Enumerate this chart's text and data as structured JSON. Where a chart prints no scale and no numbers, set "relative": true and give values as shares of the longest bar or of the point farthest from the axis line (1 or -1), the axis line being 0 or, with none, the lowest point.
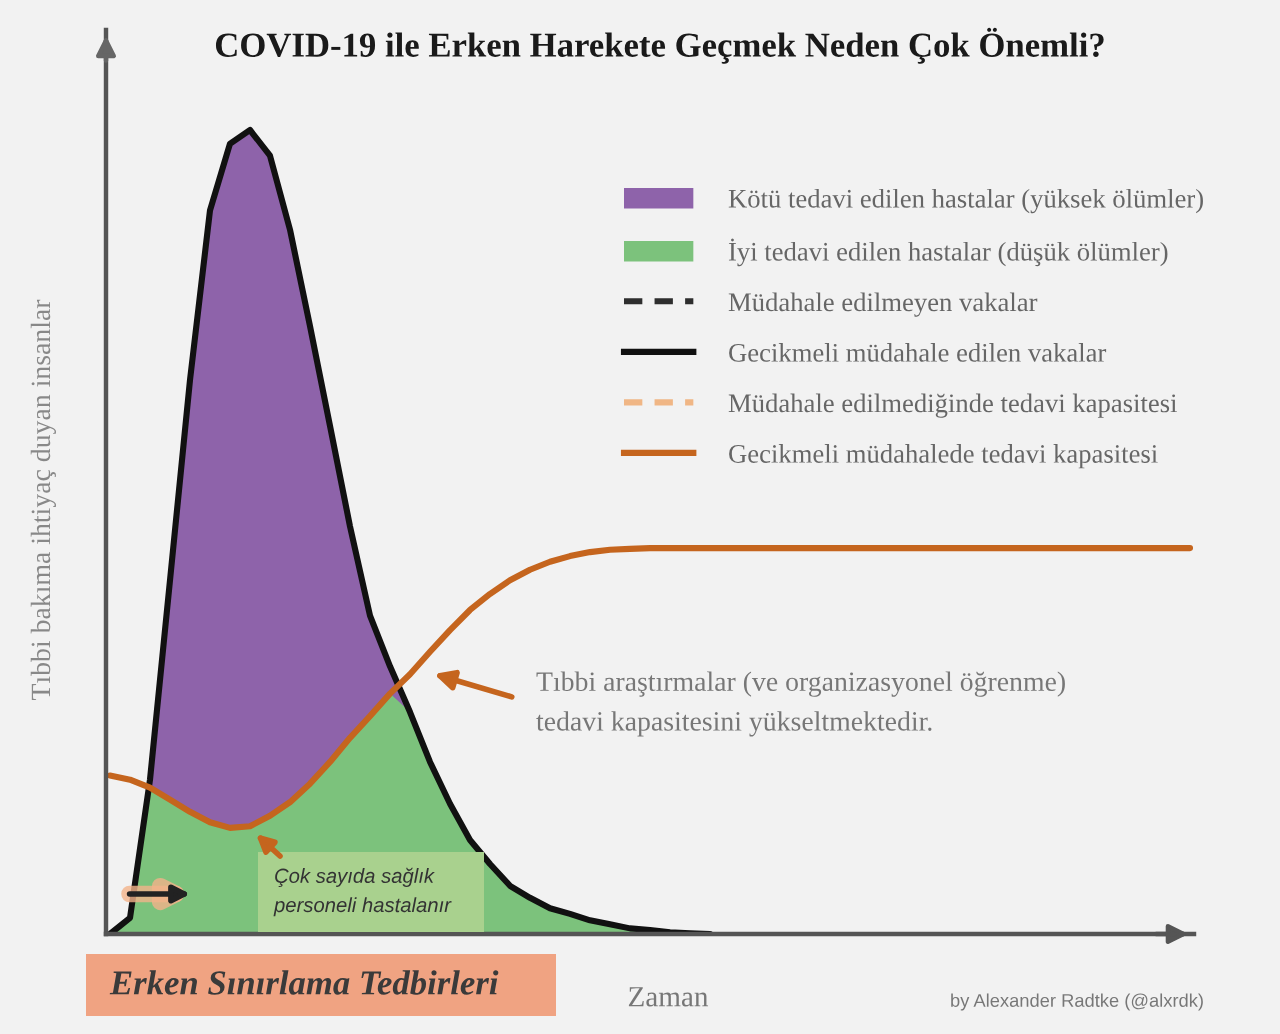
{
  "chart_data": {
    "type": "line",
    "title": "COVID-19 ile Erken Harekete Geçmek Neden Çok Önemli?",
    "xlabel": "Zaman",
    "ylabel": "Tıbbi bakıma ihtiyaç duyan insanlar",
    "relative": true,
    "legend": "top right",
    "categories": [
      null,
      null,
      null,
      null,
      null,
      null,
      null,
      null,
      null,
      null,
      null,
      null,
      null,
      null,
      null,
      null,
      null,
      null,
      null,
      null,
      null,
      null,
      null,
      null,
      null,
      null,
      null,
      null,
      null,
      null,
      null,
      null,
      null,
      null,
      null,
      null,
      null,
      null,
      null,
      null,
      null,
      null,
      null,
      null,
      null,
      null,
      null,
      null,
      null,
      null,
      null,
      null,
      null,
      null,
      null
    ],
    "series": [
      {
        "name": "Kötü tedavi edilen hastalar (yüksek ölümler)",
        "type": "area",
        "color": "#8e63aa",
        "values": [
          null,
          null,
          0.192,
          0.44,
          0.689,
          0.9,
          0.983,
          1.0,
          0.968,
          0.876,
          0.756,
          0.632,
          0.507,
          0.396,
          0.333,
          0.276,
          null,
          null,
          null,
          null,
          null,
          null,
          null,
          null,
          null,
          null,
          null,
          null,
          null,
          null,
          null,
          null,
          null,
          null,
          null,
          null,
          null,
          null,
          null,
          null,
          null,
          null,
          null,
          null,
          null,
          null,
          null,
          null,
          null,
          null,
          null,
          null,
          null,
          null,
          null
        ]
      },
      {
        "name": "İyi tedavi edilen hastalar (düşük ölümler)",
        "type": "area",
        "color": "#7cc27c",
        "values": [
          0,
          0.02,
          0.182,
          0.167,
          0.152,
          0.139,
          0.132,
          0.134,
          0.147,
          0.164,
          0.187,
          0.214,
          0.244,
          0.271,
          0.299,
          0.276,
          0.214,
          0.162,
          0.117,
          0.087,
          0.06,
          0.045,
          0.032,
          0.025,
          0.017,
          0.012,
          0.007,
          0.005,
          0.002,
          0.001,
          0,
          null,
          null,
          null,
          null,
          null,
          null,
          null,
          null,
          null,
          null,
          null,
          null,
          null,
          null,
          null,
          null,
          null,
          null,
          null,
          null,
          null,
          null,
          null,
          null
        ]
      },
      {
        "name": "Müdahale edilmeyen vakalar",
        "color": "#2e2e2e",
        "line_style": "dashed",
        "values": [
          null,
          null,
          null,
          null,
          null,
          null,
          null,
          null,
          null,
          null,
          null,
          null,
          null,
          null,
          null,
          null,
          null,
          null,
          null,
          null,
          null,
          null,
          null,
          null,
          null,
          null,
          null,
          null,
          null,
          null,
          null,
          null,
          null,
          null,
          null,
          null,
          null,
          null,
          null,
          null,
          null,
          null,
          null,
          null,
          null,
          null,
          null,
          null,
          null,
          null,
          null,
          null,
          null,
          null,
          null
        ]
      },
      {
        "name": "Gecikmeli müdahale edilen vakalar",
        "color": "#111111",
        "values": [
          0,
          0.02,
          0.192,
          0.44,
          0.689,
          0.9,
          0.983,
          1.0,
          0.968,
          0.876,
          0.756,
          0.632,
          0.507,
          0.396,
          0.333,
          0.276,
          0.214,
          0.162,
          0.117,
          0.087,
          0.06,
          0.045,
          0.032,
          0.025,
          0.017,
          0.012,
          0.007,
          0.005,
          0.002,
          0.001,
          0,
          null,
          null,
          null,
          null,
          null,
          null,
          null,
          null,
          null,
          null,
          null,
          null,
          null,
          null,
          null,
          null,
          null,
          null,
          null,
          null,
          null,
          null,
          null,
          null
        ]
      },
      {
        "name": "Müdahale edilmediğinde tedavi kapasitesi",
        "color": "#f0b685",
        "line_style": "dashed",
        "values": [
          null,
          null,
          null,
          null,
          null,
          null,
          null,
          null,
          null,
          null,
          null,
          null,
          null,
          null,
          null,
          null,
          null,
          null,
          null,
          null,
          null,
          null,
          null,
          null,
          null,
          null,
          null,
          null,
          null,
          null,
          null,
          null,
          null,
          null,
          null,
          null,
          null,
          null,
          null,
          null,
          null,
          null,
          null,
          null,
          null,
          null,
          null,
          null,
          null,
          null,
          null,
          null,
          null,
          null,
          null
        ]
      },
      {
        "name": "Gecikmeli müdahalede tedavi kapasitesi",
        "color": "#c5651e",
        "values": [
          0.197,
          0.192,
          0.182,
          0.167,
          0.152,
          0.139,
          0.132,
          0.134,
          0.147,
          0.164,
          0.187,
          0.214,
          0.244,
          0.271,
          0.299,
          0.323,
          0.351,
          0.378,
          0.403,
          0.423,
          0.44,
          0.453,
          0.463,
          0.47,
          0.475,
          0.478,
          0.479,
          0.48,
          0.48,
          0.48,
          0.48,
          0.48,
          0.48,
          0.48,
          0.48,
          0.48,
          0.48,
          0.48,
          0.48,
          0.48,
          0.48,
          0.48,
          0.48,
          0.48,
          0.48,
          0.48,
          0.48,
          0.48,
          0.48,
          0.48,
          0.48,
          0.48,
          0.48,
          0.48,
          0.48
        ]
      }
    ],
    "annotations": [
      "Tıbbi araştırmalar (ve organizasyonel öğrenme)\ntedavi kapasitesini yükseltmektedir.",
      "Çok sayıda sağlık\npersoneli hastalanır",
      "Erken Sınırlama Tedbirleri",
      "by Alexander Radtke (@alxrdk)"
    ]
  }
}
